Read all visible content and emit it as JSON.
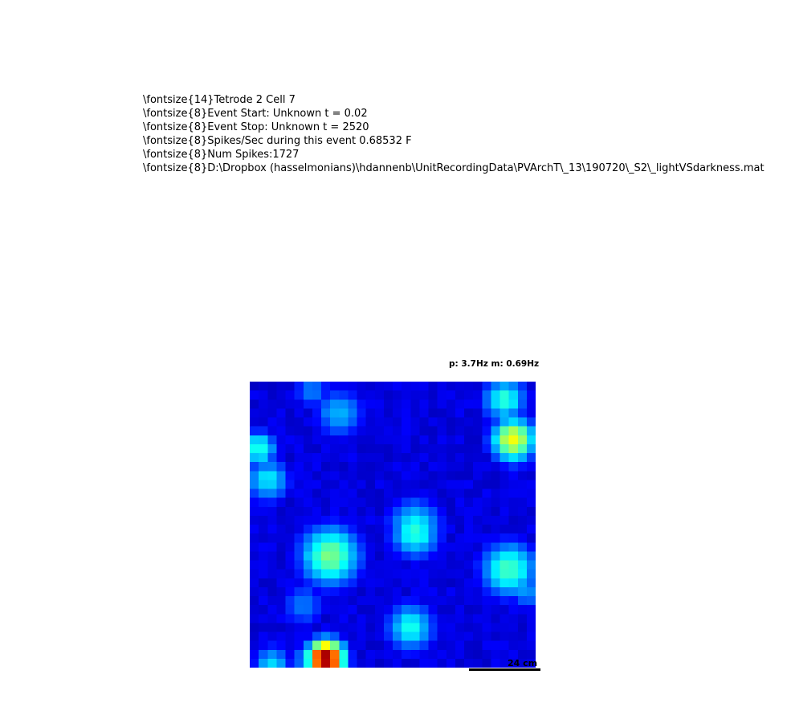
{
  "header": {
    "lines": [
      "\\fontsize{14}Tetrode 2 Cell 7",
      "\\fontsize{8}Event Start: Unknown t = 0.02",
      "\\fontsize{8}Event Stop: Unknown t = 2520",
      "\\fontsize{8}Spikes/Sec during this event 0.68532 F",
      "\\fontsize{8}Num Spikes:1727",
      "\\fontsize{8}D:\\Dropbox (hasselmonians)\\hdannenb\\UnitRecordingData\\PVArchT\\_13\\190720\\_S2\\_lightVSdarkness.mat"
    ]
  },
  "rate_label": "p: 3.7Hz m: 0.69Hz",
  "scale_bar": {
    "label": "24 cm"
  },
  "chart_data": {
    "type": "heatmap",
    "colormap": "jet",
    "grid_size": [
      32,
      32
    ],
    "value_range": [
      0,
      3.7
    ],
    "peak_rate_hz": 3.7,
    "mean_rate_hz": 0.69,
    "axes_visible": false,
    "fields": [
      {
        "row": 30.5,
        "col": 8.0,
        "rate": 3.7,
        "width": 1.5
      },
      {
        "row": 30.5,
        "col": 6.0,
        "rate": 1.2,
        "width": 1.2
      },
      {
        "row": 6.0,
        "col": 29.0,
        "rate": 2.25,
        "width": 1.8
      },
      {
        "row": 1.5,
        "col": 28.0,
        "rate": 1.5,
        "width": 1.8
      },
      {
        "row": 3.0,
        "col": 9.5,
        "rate": 1.1,
        "width": 2.0
      },
      {
        "row": 0.5,
        "col": 6.5,
        "rate": 0.9,
        "width": 1.5
      },
      {
        "row": 7.0,
        "col": 0.5,
        "rate": 1.5,
        "width": 1.5
      },
      {
        "row": 10.5,
        "col": 1.5,
        "rate": 1.3,
        "width": 1.8
      },
      {
        "row": 19.0,
        "col": 8.5,
        "rate": 1.8,
        "width": 2.5
      },
      {
        "row": 15.5,
        "col": 18.0,
        "rate": 1.3,
        "width": 2.2
      },
      {
        "row": 16.5,
        "col": 18.0,
        "rate": 1.5,
        "width": 2.0
      },
      {
        "row": 20.5,
        "col": 28.5,
        "rate": 1.6,
        "width": 2.3
      },
      {
        "row": 27.0,
        "col": 17.5,
        "rate": 1.4,
        "width": 2.0
      },
      {
        "row": 24.5,
        "col": 5.5,
        "rate": 0.9,
        "width": 1.8
      },
      {
        "row": 23.0,
        "col": 30.5,
        "rate": 1.0,
        "width": 1.5
      },
      {
        "row": 31.0,
        "col": 2.0,
        "rate": 1.2,
        "width": 1.5
      }
    ],
    "background_rate": 0.45
  }
}
